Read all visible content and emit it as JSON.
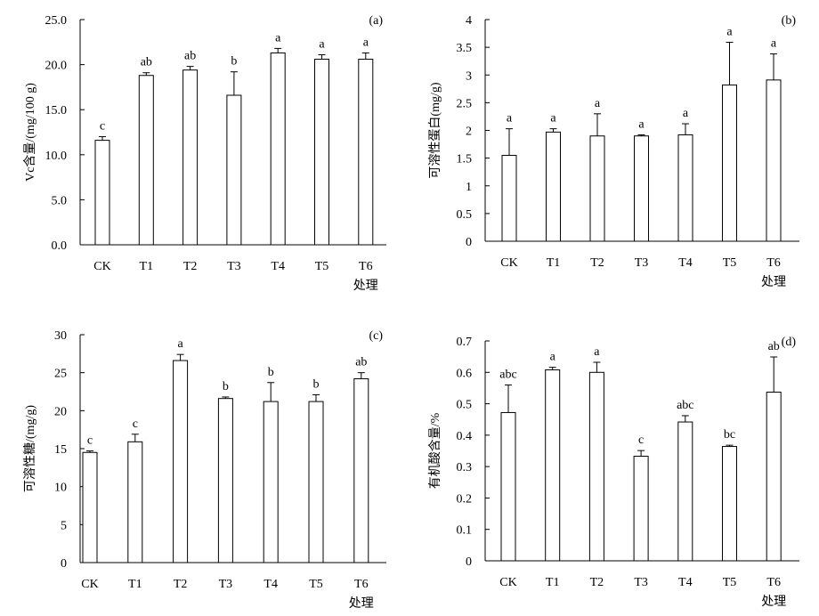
{
  "chart_data": [
    {
      "type": "bar",
      "panel_label": "(a)",
      "ylabel": "Vc含量/(mg/100 g)",
      "xlabel": "处理",
      "categories": [
        "CK",
        "T1",
        "T2",
        "T3",
        "T4",
        "T5",
        "T6"
      ],
      "values": [
        11.6,
        18.8,
        19.4,
        16.6,
        21.3,
        20.6,
        20.6
      ],
      "errors": [
        0.4,
        0.3,
        0.4,
        2.6,
        0.5,
        0.5,
        0.7
      ],
      "letters": [
        "c",
        "ab",
        "ab",
        "b",
        "a",
        "a",
        "a"
      ],
      "ylim": [
        0,
        25
      ],
      "yticks": [
        "0.0",
        "5.0",
        "10.0",
        "15.0",
        "20.0",
        "25.0"
      ]
    },
    {
      "type": "bar",
      "panel_label": "(b)",
      "ylabel": "可溶性蛋白(mg/g)",
      "xlabel": "处理",
      "categories": [
        "CK",
        "T1",
        "T2",
        "T3",
        "T4",
        "T5",
        "T6"
      ],
      "values": [
        1.55,
        1.97,
        1.9,
        1.9,
        1.92,
        2.82,
        2.91
      ],
      "errors": [
        0.48,
        0.06,
        0.4,
        0.02,
        0.2,
        0.77,
        0.47
      ],
      "letters": [
        "a",
        "a",
        "a",
        "a",
        "a",
        "a",
        "a"
      ],
      "ylim": [
        0,
        4
      ],
      "yticks": [
        "0",
        "0.5",
        "1",
        "1.5",
        "2",
        "2.5",
        "3",
        "3.5",
        "4"
      ]
    },
    {
      "type": "bar",
      "panel_label": "(c)",
      "ylabel": "可溶性糖/(mg/g)",
      "xlabel": "处理",
      "categories": [
        "CK",
        "T1",
        "T2",
        "T3",
        "T4",
        "T5",
        "T6"
      ],
      "values": [
        14.5,
        15.9,
        26.6,
        21.6,
        21.2,
        21.2,
        24.2
      ],
      "errors": [
        0.2,
        1.0,
        0.8,
        0.2,
        2.5,
        0.9,
        0.8
      ],
      "letters": [
        "c",
        "c",
        "a",
        "b",
        "b",
        "b",
        "ab"
      ],
      "ylim": [
        0,
        30
      ],
      "yticks": [
        "0",
        "5",
        "10",
        "15",
        "20",
        "25",
        "30"
      ]
    },
    {
      "type": "bar",
      "panel_label": "(d)",
      "ylabel": "有机酸含量/%",
      "xlabel": "处理",
      "categories": [
        "CK",
        "T1",
        "T2",
        "T3",
        "T4",
        "T5",
        "T6"
      ],
      "values": [
        0.472,
        0.608,
        0.6,
        0.333,
        0.442,
        0.364,
        0.537
      ],
      "errors": [
        0.088,
        0.008,
        0.032,
        0.018,
        0.02,
        0.004,
        0.112
      ],
      "letters": [
        "abc",
        "a",
        "a",
        "c",
        "abc",
        "bc",
        "ab"
      ],
      "ylim": [
        0,
        0.7
      ],
      "yticks": [
        "0",
        "0.1",
        "0.2",
        "0.3",
        "0.4",
        "0.5",
        "0.6",
        "0.7"
      ]
    }
  ]
}
